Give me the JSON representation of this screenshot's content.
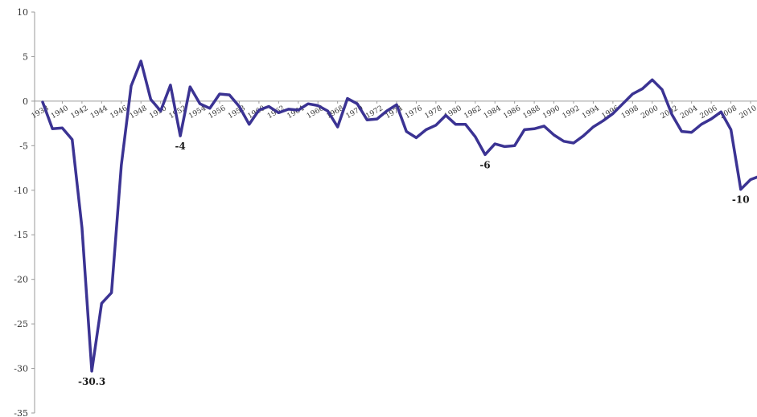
{
  "chart_data": {
    "type": "line",
    "title": "",
    "xlabel": "",
    "ylabel": "",
    "ylim": [
      -35,
      10
    ],
    "xlim": [
      1938,
      2010
    ],
    "y_ticks": [
      "10",
      "5",
      "0",
      "-5",
      "-10",
      "-15",
      "-20",
      "-25",
      "-30",
      "-35"
    ],
    "x_ticks": [
      "1938",
      "1940",
      "1942",
      "1944",
      "1946",
      "1948",
      "1950",
      "1952",
      "1954",
      "1956",
      "1958",
      "1960",
      "1962",
      "1964",
      "1966",
      "1968",
      "1970",
      "1972",
      "1974",
      "1976",
      "1978",
      "1980",
      "1982",
      "1984",
      "1986",
      "1988",
      "1990",
      "1992",
      "1994",
      "1996",
      "1998",
      "2000",
      "2002",
      "2004",
      "2006",
      "2008",
      "2010"
    ],
    "grid": false,
    "legend": "none",
    "line_color": "#3b3393",
    "x": [
      1938,
      1939,
      1940,
      1941,
      1942,
      1943,
      1944,
      1945,
      1946,
      1947,
      1948,
      1949,
      1950,
      1951,
      1952,
      1953,
      1954,
      1955,
      1956,
      1957,
      1958,
      1959,
      1960,
      1961,
      1962,
      1963,
      1964,
      1965,
      1966,
      1967,
      1968,
      1969,
      1970,
      1971,
      1972,
      1973,
      1974,
      1975,
      1976,
      1977,
      1978,
      1979,
      1980,
      1981,
      1982,
      1983,
      1984,
      1985,
      1986,
      1987,
      1988,
      1989,
      1990,
      1991,
      1992,
      1993,
      1994,
      1995,
      1996,
      1997,
      1998,
      1999,
      2000,
      2001,
      2002,
      2003,
      2004,
      2005,
      2006,
      2007,
      2008,
      2009,
      2010,
      2011
    ],
    "values": [
      -0.1,
      -3.1,
      -3.0,
      -4.3,
      -14.2,
      -30.3,
      -22.7,
      -21.5,
      -7.2,
      1.7,
      4.5,
      0.2,
      -1.1,
      1.8,
      -3.9,
      1.6,
      -0.3,
      -0.8,
      0.8,
      0.7,
      -0.6,
      -2.6,
      -1.0,
      -0.6,
      -1.3,
      -0.9,
      -1.0,
      -0.3,
      -0.5,
      -1.1,
      -2.9,
      0.3,
      -0.3,
      -2.1,
      -2.0,
      -1.1,
      -0.4,
      -3.4,
      -4.1,
      -3.2,
      -2.7,
      -1.6,
      -2.6,
      -2.6,
      -4.0,
      -6.0,
      -4.8,
      -5.1,
      -5.0,
      -3.2,
      -3.1,
      -2.8,
      -3.8,
      -4.5,
      -4.7,
      -3.9,
      -2.9,
      -2.2,
      -1.4,
      -0.3,
      0.8,
      1.4,
      2.4,
      1.3,
      -1.5,
      -3.4,
      -3.5,
      -2.6,
      -2.0,
      -1.2,
      -3.2,
      -9.9,
      -8.8,
      -8.4
    ],
    "annotations": [
      {
        "x": 1943,
        "y": -30.3,
        "text": "-30.3"
      },
      {
        "x": 1952,
        "y": -3.9,
        "text": "-4"
      },
      {
        "x": 1983,
        "y": -6.0,
        "text": "-6"
      },
      {
        "x": 2009,
        "y": -9.9,
        "text": "-10"
      }
    ]
  }
}
